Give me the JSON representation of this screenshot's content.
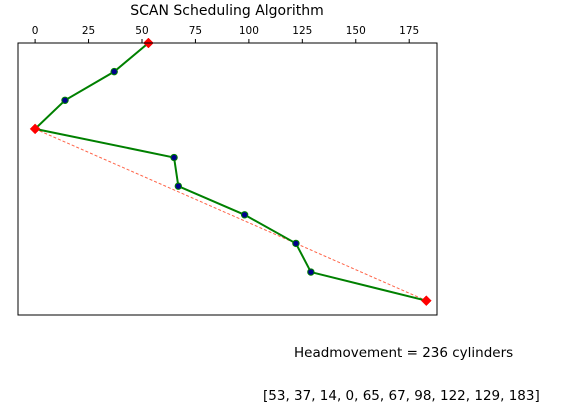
{
  "chart_data": {
    "type": "line",
    "title": "SCAN Scheduling Algorithm",
    "x_axis_position": "top",
    "xlim": [
      -8,
      188
    ],
    "ylim": [
      0,
      9.5
    ],
    "xticks": [
      0,
      25,
      50,
      75,
      100,
      125,
      150,
      175
    ],
    "y_inverted": true,
    "grid": false,
    "series": [
      {
        "values": [
          53,
          37,
          14,
          0,
          65,
          67,
          98,
          122,
          129,
          183
        ],
        "color": "#008000",
        "marker": "circle",
        "marker_color": "#00008b"
      }
    ],
    "endpoints": {
      "indices": [
        0,
        3,
        9
      ],
      "color": "#ff0000",
      "marker": "diamond"
    },
    "dashed_line": {
      "from_index": 3,
      "to_index": 9,
      "color": "#ff6347"
    }
  },
  "captions": {
    "headmovement": "Headmovement = 236 cylinders",
    "sequence": "[53, 37, 14, 0, 65, 67, 98, 122, 129, 183]"
  }
}
